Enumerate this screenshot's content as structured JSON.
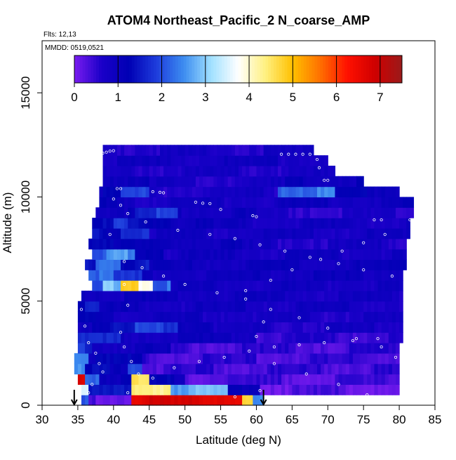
{
  "chart_data": {
    "type": "heatmap",
    "title": "ATOM4 Northeast_Pacific_2 N_coarse_AMP",
    "flights_note": "Flts: 12,13",
    "dates_note": "MMDD: 0519,0521",
    "xlabel": "Latitude (deg N)",
    "ylabel": "Altitude (m)",
    "xlim": [
      30,
      85
    ],
    "ylim": [
      0,
      17500
    ],
    "x_ticks": [
      "30",
      "35",
      "40",
      "45",
      "50",
      "55",
      "60",
      "65",
      "70",
      "75",
      "80",
      "85"
    ],
    "y_ticks": [
      "0",
      "5000",
      "10000",
      "15000"
    ],
    "colorbar": {
      "min": 0,
      "max": 7.5,
      "ticks": [
        "0",
        "1",
        "2",
        "3",
        "4",
        "5",
        "6",
        "7"
      ],
      "colors": [
        "#7a1cf0",
        "#1a00c8",
        "#0000b4",
        "#1e3cdc",
        "#3c8cf0",
        "#a0e0ff",
        "#ffffff",
        "#fff080",
        "#ffc000",
        "#ff7000",
        "#ff1000",
        "#d00000",
        "#9a1a1a"
      ]
    },
    "rows": [
      {
        "alt": 0,
        "lat_min": 35.5,
        "lat_max": 61.0,
        "segments": [
          [
            35.5,
            36.5,
            2.0
          ],
          [
            36.5,
            42.5,
            0.3
          ],
          [
            42.5,
            58.0,
            6.8
          ],
          [
            58.0,
            59.5,
            5.0
          ],
          [
            59.5,
            61.0,
            2.5
          ]
        ]
      },
      {
        "alt": 500,
        "lat_min": 35.5,
        "lat_max": 80.0,
        "segments": [
          [
            35.5,
            36.5,
            3.5
          ],
          [
            36.5,
            42.5,
            1.4
          ],
          [
            42.5,
            48.0,
            4.5
          ],
          [
            48.0,
            56.0,
            2.8
          ],
          [
            56.0,
            60.5,
            1.2
          ],
          [
            60.5,
            80.0,
            0.3
          ]
        ]
      },
      {
        "alt": 1000,
        "lat_min": 35.0,
        "lat_max": 80.0,
        "segments": [
          [
            35.0,
            36.0,
            7.0
          ],
          [
            36.0,
            38.0,
            2.4
          ],
          [
            38.0,
            42.5,
            1.2
          ],
          [
            42.5,
            45.0,
            4.5
          ],
          [
            45.0,
            50.0,
            1.2
          ],
          [
            50.0,
            80.0,
            0.4
          ]
        ]
      },
      {
        "alt": 1500,
        "lat_min": 34.5,
        "lat_max": 80.0,
        "segments": [
          [
            34.5,
            36.0,
            2.5
          ],
          [
            36.0,
            42.0,
            1.3
          ],
          [
            42.0,
            44.0,
            2.2
          ],
          [
            44.0,
            80.0,
            0.5
          ]
        ]
      },
      {
        "alt": 2000,
        "lat_min": 34.5,
        "lat_max": 80.0,
        "segments": [
          [
            34.5,
            36.5,
            2.6
          ],
          [
            36.5,
            44.0,
            1.2
          ],
          [
            44.0,
            80.0,
            0.5
          ]
        ]
      },
      {
        "alt": 2500,
        "lat_min": 35.0,
        "lat_max": 80.0,
        "segments": [
          [
            35.0,
            37.0,
            1.8
          ],
          [
            37.0,
            48.0,
            1.0
          ],
          [
            48.0,
            80.0,
            0.5
          ]
        ]
      },
      {
        "alt": 3000,
        "lat_min": 35.0,
        "lat_max": 80.5,
        "segments": [
          [
            35.0,
            41.0,
            1.6
          ],
          [
            41.0,
            60.0,
            1.0
          ],
          [
            60.0,
            80.5,
            0.6
          ]
        ]
      },
      {
        "alt": 3500,
        "lat_min": 35.0,
        "lat_max": 80.5,
        "segments": [
          [
            35.0,
            37.0,
            1.1
          ],
          [
            37.0,
            43.0,
            1.4
          ],
          [
            43.0,
            49.0,
            1.9
          ],
          [
            49.0,
            54.0,
            1.2
          ],
          [
            54.0,
            80.5,
            0.8
          ]
        ]
      },
      {
        "alt": 4000,
        "lat_min": 35.0,
        "lat_max": 80.5,
        "segments": [
          [
            35.0,
            40.0,
            1.2
          ],
          [
            40.0,
            60.0,
            0.9
          ],
          [
            60.0,
            80.5,
            0.8
          ]
        ]
      },
      {
        "alt": 4500,
        "lat_min": 35.0,
        "lat_max": 80.5,
        "segments": [
          [
            35.0,
            38.0,
            1.5
          ],
          [
            38.0,
            46.0,
            1.0
          ],
          [
            46.0,
            80.5,
            0.9
          ]
        ]
      },
      {
        "alt": 5000,
        "lat_min": 35.5,
        "lat_max": 80.5,
        "segments": [
          [
            35.5,
            38.0,
            1.1
          ],
          [
            38.0,
            55.0,
            1.0
          ],
          [
            55.0,
            80.5,
            0.9
          ]
        ]
      },
      {
        "alt": 5500,
        "lat_min": 37.0,
        "lat_max": 80.5,
        "segments": [
          [
            37.0,
            38.5,
            2.0
          ],
          [
            38.5,
            41.0,
            3.0
          ],
          [
            41.0,
            43.5,
            5.0
          ],
          [
            43.5,
            45.5,
            4.0
          ],
          [
            45.5,
            48.0,
            2.3
          ],
          [
            48.0,
            80.5,
            0.9
          ]
        ]
      },
      {
        "alt": 6000,
        "lat_min": 36.5,
        "lat_max": 80.5,
        "segments": [
          [
            36.5,
            40.0,
            2.3
          ],
          [
            40.0,
            44.0,
            1.7
          ],
          [
            44.0,
            80.5,
            1.0
          ]
        ]
      },
      {
        "alt": 6500,
        "lat_min": 36.0,
        "lat_max": 81.0,
        "segments": [
          [
            36.0,
            37.5,
            1.6
          ],
          [
            37.5,
            41.0,
            2.5
          ],
          [
            41.0,
            45.0,
            1.5
          ],
          [
            45.0,
            81.0,
            1.0
          ]
        ]
      },
      {
        "alt": 7000,
        "lat_min": 37.0,
        "lat_max": 81.0,
        "segments": [
          [
            37.0,
            39.0,
            2.0
          ],
          [
            39.0,
            43.0,
            2.6
          ],
          [
            43.0,
            47.0,
            1.4
          ],
          [
            47.0,
            81.0,
            0.9
          ]
        ]
      },
      {
        "alt": 7500,
        "lat_min": 36.5,
        "lat_max": 81.0,
        "segments": [
          [
            36.5,
            40.0,
            1.5
          ],
          [
            40.0,
            58.0,
            1.1
          ],
          [
            58.0,
            81.0,
            0.8
          ]
        ]
      },
      {
        "alt": 8000,
        "lat_min": 37.0,
        "lat_max": 81.5,
        "segments": [
          [
            37.0,
            41.0,
            1.4
          ],
          [
            41.0,
            45.0,
            1.9
          ],
          [
            45.0,
            81.5,
            0.9
          ]
        ]
      },
      {
        "alt": 8500,
        "lat_min": 37.0,
        "lat_max": 81.5,
        "segments": [
          [
            37.0,
            40.0,
            1.3
          ],
          [
            40.0,
            42.0,
            1.8
          ],
          [
            42.0,
            48.0,
            1.4
          ],
          [
            48.0,
            54.0,
            1.1
          ],
          [
            54.0,
            81.5,
            0.9
          ]
        ]
      },
      {
        "alt": 9000,
        "lat_min": 37.5,
        "lat_max": 82.0,
        "segments": [
          [
            37.5,
            43.0,
            1.1
          ],
          [
            43.0,
            46.0,
            1.6
          ],
          [
            46.0,
            49.0,
            1.9
          ],
          [
            49.0,
            60.0,
            1.0
          ],
          [
            60.0,
            82.0,
            0.7
          ]
        ]
      },
      {
        "alt": 9500,
        "lat_min": 38.0,
        "lat_max": 82.0,
        "segments": [
          [
            38.0,
            43.0,
            1.1
          ],
          [
            43.0,
            65.0,
            0.9
          ],
          [
            65.0,
            82.0,
            1.0
          ]
        ]
      },
      {
        "alt": 10000,
        "lat_min": 38.0,
        "lat_max": 80.0,
        "segments": [
          [
            38.0,
            41.0,
            1.2
          ],
          [
            41.0,
            45.0,
            1.9
          ],
          [
            45.0,
            63.0,
            0.8
          ],
          [
            63.0,
            71.0,
            2.4
          ],
          [
            71.0,
            80.0,
            1.2
          ]
        ]
      },
      {
        "alt": 10500,
        "lat_min": 38.5,
        "lat_max": 75.0,
        "segments": [
          [
            38.5,
            45.0,
            1.2
          ],
          [
            45.0,
            64.0,
            0.8
          ],
          [
            64.0,
            75.0,
            1.1
          ]
        ]
      },
      {
        "alt": 11000,
        "lat_min": 38.5,
        "lat_max": 71.0,
        "segments": [
          [
            38.5,
            71.0,
            0.8
          ]
        ]
      },
      {
        "alt": 11500,
        "lat_min": 38.5,
        "lat_max": 70.0,
        "segments": [
          [
            38.5,
            70.0,
            0.9
          ]
        ]
      },
      {
        "alt": 12000,
        "lat_min": 38.5,
        "lat_max": 68.0,
        "segments": [
          [
            38.5,
            68.0,
            0.8
          ]
        ]
      }
    ],
    "flight_track_points": [
      [
        38.5,
        12100
      ],
      [
        39.0,
        12150
      ],
      [
        39.5,
        12200
      ],
      [
        40.0,
        12220
      ],
      [
        63.5,
        12050
      ],
      [
        64.5,
        12050
      ],
      [
        65.5,
        12050
      ],
      [
        66.5,
        12050
      ],
      [
        67.5,
        12050
      ],
      [
        68.5,
        11800
      ],
      [
        68.8,
        11400
      ],
      [
        69.5,
        10800
      ],
      [
        70.0,
        10800
      ],
      [
        40.5,
        10400
      ],
      [
        41.0,
        10400
      ],
      [
        45.5,
        10250
      ],
      [
        46.5,
        10220
      ],
      [
        47.0,
        10200
      ],
      [
        51.5,
        9750
      ],
      [
        52.5,
        9700
      ],
      [
        53.5,
        9680
      ],
      [
        55.0,
        9400
      ],
      [
        59.5,
        9100
      ],
      [
        60.0,
        9050
      ],
      [
        76.5,
        8900
      ],
      [
        77.5,
        8900
      ],
      [
        81.5,
        8900
      ],
      [
        40.0,
        9900
      ],
      [
        41.0,
        9600
      ],
      [
        42.0,
        9200
      ],
      [
        44.5,
        8800
      ],
      [
        49.0,
        8400
      ],
      [
        53.5,
        8200
      ],
      [
        57.0,
        8000
      ],
      [
        60.5,
        7700
      ],
      [
        64.0,
        7400
      ],
      [
        67.5,
        7100
      ],
      [
        71.5,
        6800
      ],
      [
        75.0,
        6500
      ],
      [
        79.0,
        6200
      ],
      [
        41.5,
        6900
      ],
      [
        44.0,
        6600
      ],
      [
        47.0,
        6200
      ],
      [
        50.0,
        5800
      ],
      [
        54.5,
        5400
      ],
      [
        58.5,
        5100
      ],
      [
        62.0,
        4600
      ],
      [
        66.0,
        4200
      ],
      [
        70.0,
        3700
      ],
      [
        74.0,
        3200
      ],
      [
        77.5,
        2800
      ],
      [
        79.5,
        2300
      ],
      [
        35.5,
        4600
      ],
      [
        36.0,
        3800
      ],
      [
        36.5,
        3000
      ],
      [
        37.5,
        2500
      ],
      [
        38.0,
        2000
      ],
      [
        38.5,
        1600
      ],
      [
        41.0,
        3500
      ],
      [
        41.5,
        2800
      ],
      [
        42.5,
        2100
      ],
      [
        43.5,
        1500
      ],
      [
        42.0,
        4800
      ],
      [
        41.5,
        5800
      ],
      [
        45.5,
        1300
      ],
      [
        48.5,
        1800
      ],
      [
        52.0,
        2100
      ],
      [
        55.5,
        2300
      ],
      [
        59.0,
        2600
      ],
      [
        62.5,
        2800
      ],
      [
        66.0,
        2900
      ],
      [
        69.5,
        3000
      ],
      [
        73.5,
        3100
      ],
      [
        77.0,
        3200
      ],
      [
        60.0,
        3300
      ],
      [
        61.0,
        4000
      ],
      [
        58.5,
        5500
      ],
      [
        62.0,
        6000
      ],
      [
        65.0,
        6500
      ],
      [
        69.0,
        7000
      ],
      [
        72.0,
        7400
      ],
      [
        75.0,
        7800
      ],
      [
        78.0,
        8200
      ],
      [
        62.5,
        2000
      ],
      [
        67.0,
        1500
      ],
      [
        71.5,
        1000
      ],
      [
        75.5,
        500
      ],
      [
        79.0,
        200
      ],
      [
        73.0,
        300
      ],
      [
        60.5,
        700
      ],
      [
        57.0,
        400
      ],
      [
        42.0,
        600
      ],
      [
        39.5,
        8200
      ],
      [
        36.5,
        600
      ],
      [
        37.0,
        1000
      ]
    ],
    "arrows": [
      {
        "lat": 34.5
      },
      {
        "lat": 61.0
      }
    ]
  }
}
